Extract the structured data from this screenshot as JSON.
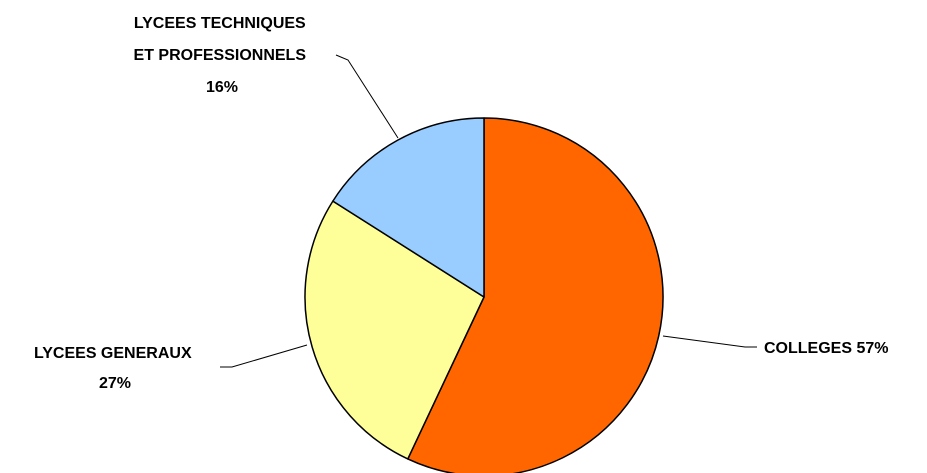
{
  "chart_data": {
    "type": "pie",
    "title": "",
    "legend": "none",
    "slices": [
      {
        "label": "COLLEGES",
        "value": 57,
        "percent_label": "57%",
        "color": "#ff6600"
      },
      {
        "label": "LYCEES GENERAUX",
        "value": 27,
        "percent_label": "27%",
        "color": "#ffff99"
      },
      {
        "label_lines": [
          "LYCEES TECHNIQUES",
          "ET PROFESSIONNELS"
        ],
        "value": 16,
        "percent_label": "16%",
        "color": "#99ccff"
      }
    ]
  }
}
